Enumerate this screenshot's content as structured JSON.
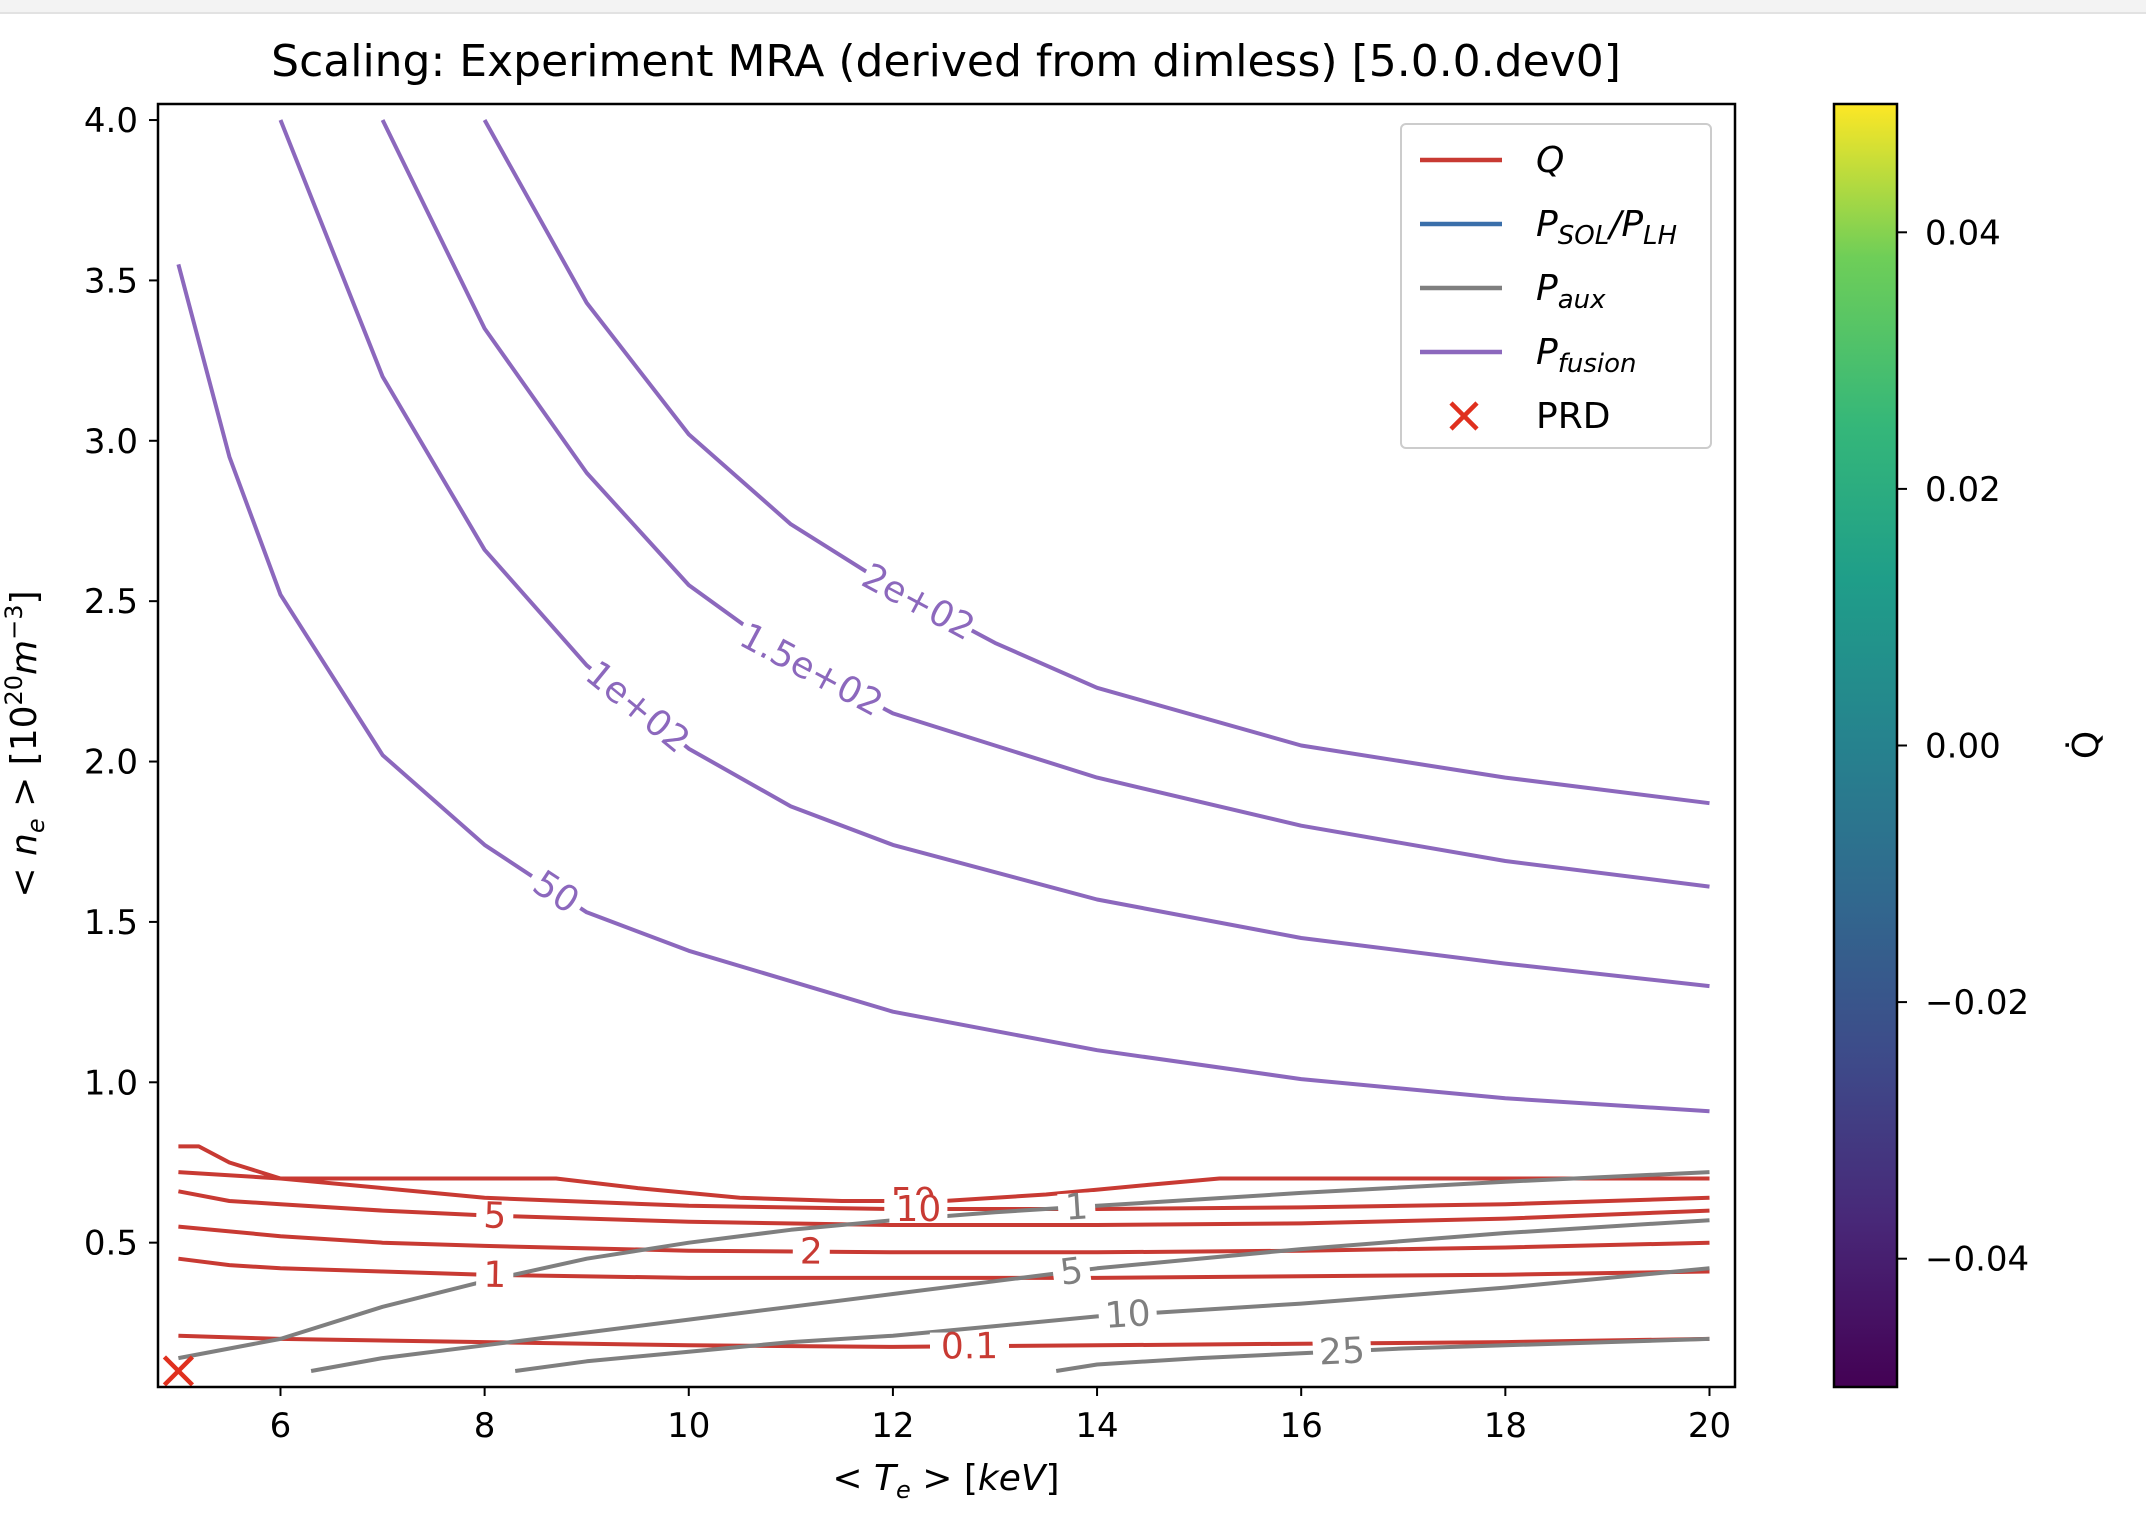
{
  "chart_data": {
    "type": "line",
    "title": "Scaling: Experiment MRA (derived from dimless) [5.0.0.dev0]",
    "xlabel": "< T_e >  [keV]",
    "ylabel": "< n_e >  [10^20 m^-3]",
    "xlim": [
      4.8,
      20.25
    ],
    "ylim": [
      0.05,
      4.05
    ],
    "x_ticks": [
      "6",
      "8",
      "10",
      "12",
      "14",
      "16",
      "18",
      "20"
    ],
    "y_ticks": [
      "0.5",
      "1.0",
      "1.5",
      "2.0",
      "2.5",
      "3.0",
      "3.5",
      "4.0"
    ],
    "grid": false,
    "legend_position": "top-right",
    "legend": [
      {
        "label": "Q",
        "style": "line",
        "color": "#c83a33"
      },
      {
        "label": "P_SOL/P_LH",
        "style": "line",
        "color": "#3a6faa"
      },
      {
        "label": "P_aux",
        "style": "line",
        "color": "#7f7f7f"
      },
      {
        "label": "P_fusion",
        "style": "line",
        "color": "#8c68bd"
      },
      {
        "label": "PRD",
        "style": "marker-x",
        "color": "#e0301e"
      }
    ],
    "colorbar": {
      "label": "Q̇",
      "range": [
        -0.05,
        0.05
      ],
      "ticks": [
        "−0.04",
        "−0.02",
        "0.00",
        "0.02",
        "0.04"
      ],
      "tick_values": [
        -0.04,
        -0.02,
        0.0,
        0.02,
        0.04
      ],
      "colormap": "viridis"
    },
    "series": [
      {
        "group": "P_fusion",
        "level": "50",
        "color": "#8c68bd",
        "x": [
          5.0,
          5.5,
          6.0,
          7.0,
          8.0,
          9.0,
          10.0,
          12.0,
          14.0,
          16.0,
          18.0,
          20.0
        ],
        "y": [
          3.55,
          2.95,
          2.52,
          2.02,
          1.74,
          1.53,
          1.41,
          1.22,
          1.1,
          1.01,
          0.95,
          0.91
        ],
        "label_at": 8.7
      },
      {
        "group": "P_fusion",
        "level": "1e+02",
        "color": "#8c68bd",
        "x": [
          6.0,
          7.0,
          8.0,
          9.0,
          10.0,
          11.0,
          12.0,
          14.0,
          16.0,
          18.0,
          20.0
        ],
        "y": [
          4.0,
          3.2,
          2.66,
          2.3,
          2.04,
          1.86,
          1.74,
          1.57,
          1.45,
          1.37,
          1.3
        ],
        "label_at": 9.5
      },
      {
        "group": "P_fusion",
        "level": "1.5e+02",
        "color": "#8c68bd",
        "x": [
          7.0,
          8.0,
          9.0,
          10.0,
          11.0,
          12.0,
          14.0,
          16.0,
          18.0,
          20.0
        ],
        "y": [
          4.0,
          3.35,
          2.9,
          2.55,
          2.32,
          2.15,
          1.95,
          1.8,
          1.69,
          1.61
        ],
        "label_at": 11.2
      },
      {
        "group": "P_fusion",
        "level": "2e+02",
        "color": "#8c68bd",
        "x": [
          8.0,
          9.0,
          10.0,
          11.0,
          12.0,
          13.0,
          14.0,
          16.0,
          18.0,
          20.0
        ],
        "y": [
          4.0,
          3.43,
          3.02,
          2.74,
          2.54,
          2.37,
          2.23,
          2.05,
          1.95,
          1.87
        ],
        "label_at": 12.25
      },
      {
        "group": "Q",
        "level": "50",
        "color": "#c83a33",
        "x": [
          5.0,
          5.2,
          5.5,
          6.0,
          7.0,
          8.0,
          8.7,
          9.5,
          10.5,
          11.5,
          12.5,
          13.5,
          14.5,
          15.2,
          17.0,
          20.0
        ],
        "y": [
          0.8,
          0.8,
          0.75,
          0.7,
          0.7,
          0.7,
          0.7,
          0.67,
          0.64,
          0.63,
          0.63,
          0.65,
          0.68,
          0.7,
          0.7,
          0.7
        ],
        "label_at": 12.2
      },
      {
        "group": "Q",
        "level": "10",
        "color": "#c83a33",
        "x": [
          5.0,
          6.0,
          7.0,
          8.0,
          10.0,
          12.0,
          14.0,
          16.0,
          18.0,
          20.0
        ],
        "y": [
          0.72,
          0.7,
          0.67,
          0.64,
          0.615,
          0.605,
          0.605,
          0.61,
          0.62,
          0.64
        ],
        "label_at": 12.25
      },
      {
        "group": "Q",
        "level": "5",
        "color": "#c83a33",
        "x": [
          5.0,
          5.5,
          6.0,
          7.0,
          8.0,
          10.0,
          12.0,
          14.0,
          16.0,
          18.0,
          20.0
        ],
        "y": [
          0.66,
          0.63,
          0.62,
          0.6,
          0.585,
          0.565,
          0.555,
          0.555,
          0.56,
          0.575,
          0.6
        ],
        "label_at": 8.1
      },
      {
        "group": "Q",
        "level": "2",
        "color": "#c83a33",
        "x": [
          5.0,
          6.0,
          7.0,
          8.0,
          10.0,
          12.0,
          14.0,
          16.0,
          18.0,
          20.0
        ],
        "y": [
          0.55,
          0.52,
          0.5,
          0.49,
          0.475,
          0.47,
          0.47,
          0.475,
          0.485,
          0.5
        ],
        "label_at": 11.2
      },
      {
        "group": "Q",
        "level": "1",
        "color": "#c83a33",
        "x": [
          5.0,
          5.5,
          6.0,
          7.0,
          8.0,
          10.0,
          12.0,
          14.0,
          16.0,
          18.0,
          20.0
        ],
        "y": [
          0.45,
          0.43,
          0.42,
          0.41,
          0.4,
          0.39,
          0.39,
          0.39,
          0.395,
          0.4,
          0.41
        ],
        "label_at": 8.1
      },
      {
        "group": "Q",
        "level": "0.1",
        "color": "#c83a33",
        "x": [
          5.0,
          6.0,
          8.0,
          10.0,
          12.0,
          14.0,
          16.0,
          18.0,
          20.0
        ],
        "y": [
          0.21,
          0.2,
          0.19,
          0.18,
          0.175,
          0.18,
          0.185,
          0.19,
          0.2
        ],
        "label_at": 12.75
      },
      {
        "group": "P_aux",
        "level": "1",
        "color": "#7f7f7f",
        "x": [
          5.0,
          6.0,
          7.0,
          8.0,
          9.0,
          10.0,
          11.0,
          12.0,
          13.0,
          14.0,
          15.0,
          16.0,
          18.0,
          20.0
        ],
        "y": [
          0.14,
          0.2,
          0.3,
          0.38,
          0.45,
          0.5,
          0.54,
          0.57,
          0.595,
          0.615,
          0.635,
          0.655,
          0.69,
          0.72
        ],
        "label_at": 13.8
      },
      {
        "group": "P_aux",
        "level": "5",
        "color": "#7f7f7f",
        "x": [
          6.3,
          7.0,
          8.0,
          9.0,
          10.0,
          11.0,
          12.0,
          13.0,
          14.0,
          16.0,
          18.0,
          20.0
        ],
        "y": [
          0.1,
          0.14,
          0.18,
          0.22,
          0.26,
          0.3,
          0.34,
          0.38,
          0.42,
          0.48,
          0.53,
          0.57
        ],
        "label_at": 13.75
      },
      {
        "group": "P_aux",
        "level": "10",
        "color": "#7f7f7f",
        "x": [
          8.3,
          9.0,
          10.0,
          11.0,
          12.0,
          13.0,
          14.0,
          15.0,
          16.0,
          18.0,
          20.0
        ],
        "y": [
          0.1,
          0.13,
          0.16,
          0.19,
          0.21,
          0.24,
          0.27,
          0.29,
          0.31,
          0.36,
          0.42
        ],
        "label_at": 14.3
      },
      {
        "group": "P_aux",
        "level": "25",
        "color": "#7f7f7f",
        "x": [
          13.6,
          14.0,
          15.0,
          16.0,
          17.0,
          18.0,
          19.0,
          20.0
        ],
        "y": [
          0.1,
          0.12,
          0.14,
          0.155,
          0.17,
          0.18,
          0.19,
          0.2
        ],
        "label_at": 16.4
      }
    ],
    "markers": [
      {
        "label": "PRD",
        "x": 5.0,
        "y": 0.1,
        "shape": "x",
        "color": "#e0301e"
      }
    ]
  }
}
